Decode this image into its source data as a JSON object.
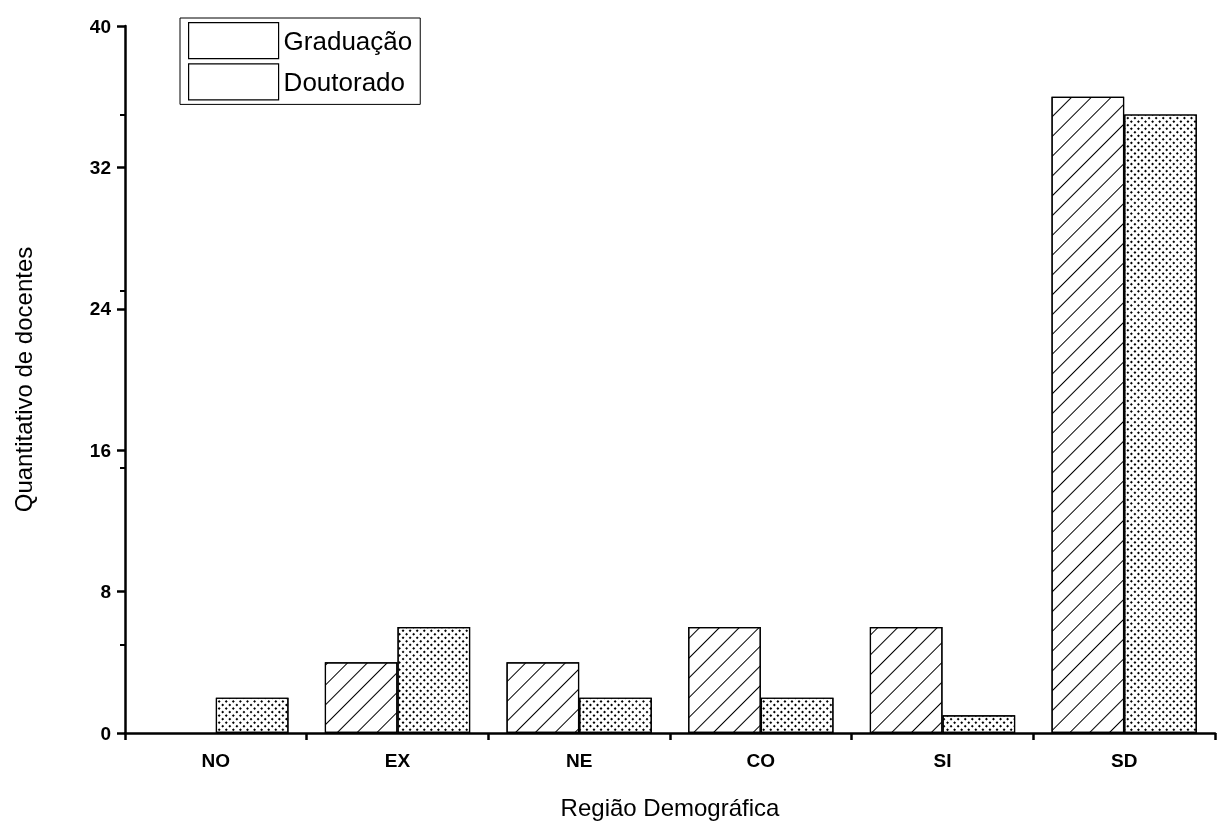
{
  "chart_data": {
    "type": "bar",
    "xlabel": "Região Demográfica",
    "ylabel": "Quantitativo de docentes",
    "categories": [
      "NO",
      "EX",
      "NE",
      "CO",
      "SI",
      "SD"
    ],
    "series": [
      {
        "name": "Graduação",
        "color": "#ffffff",
        "values": [
          0,
          4,
          4,
          6,
          6,
          36
        ]
      },
      {
        "name": "Doutorado",
        "color": "#ffffff",
        "values": [
          2,
          6,
          2,
          2,
          1,
          35
        ]
      }
    ],
    "ylim": [
      0,
      40
    ],
    "yticks": [
      0,
      8,
      16,
      24,
      32,
      40
    ],
    "grid": false,
    "legend": "top left"
  }
}
